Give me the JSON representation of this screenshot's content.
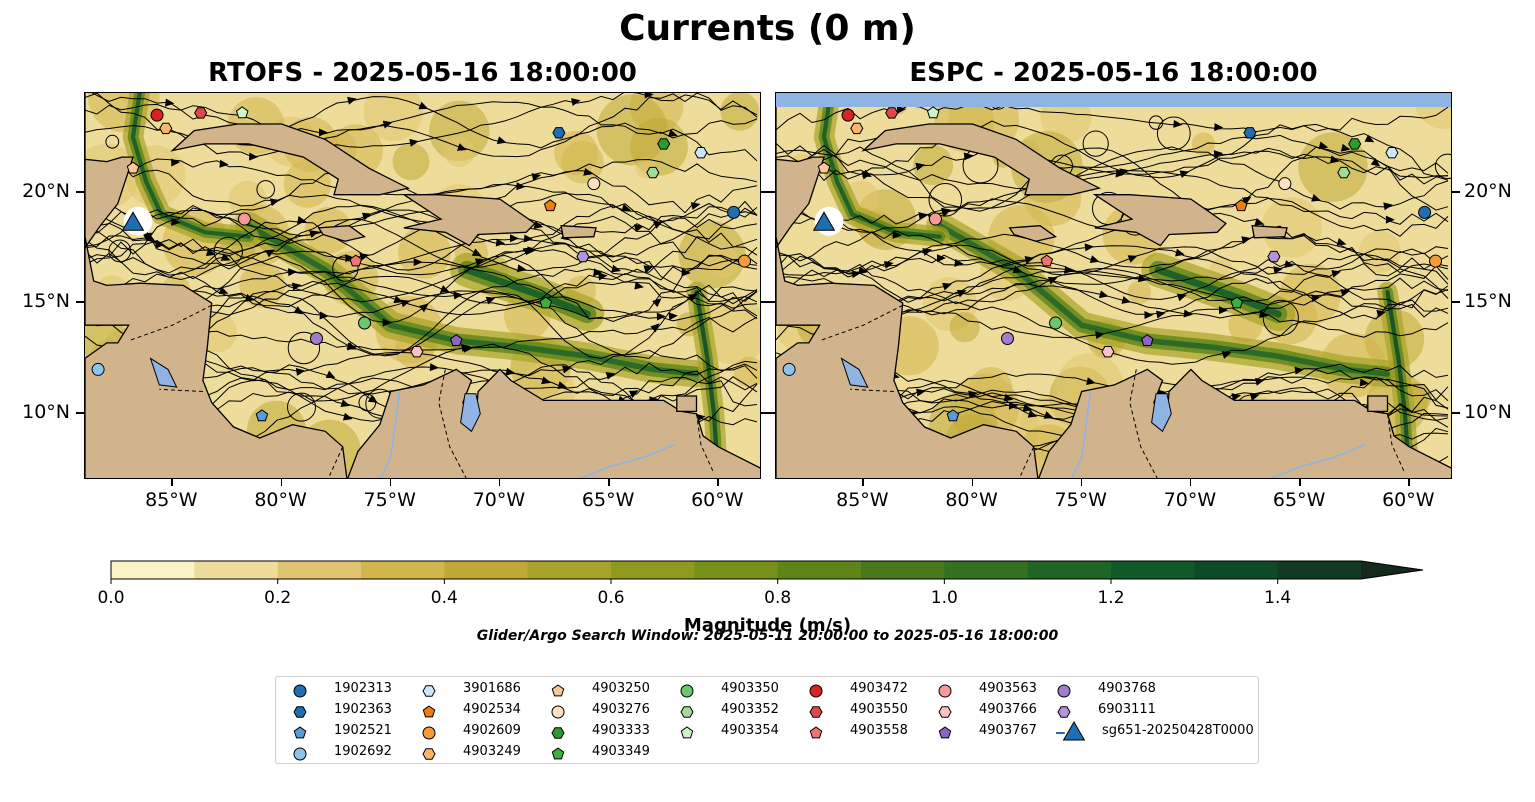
{
  "figure": {
    "title": "Currents (0 m)"
  },
  "panels": [
    {
      "name": "rtofs",
      "title": "RTOFS - 2025-05-16 18:00:00"
    },
    {
      "name": "espc",
      "title": "ESPC - 2025-05-16 18:00:00"
    }
  ],
  "axes": {
    "lon_ticks": [
      "85°W",
      "80°W",
      "75°W",
      "70°W",
      "65°W",
      "60°W"
    ],
    "lat_ticks": [
      "20°N",
      "15°N",
      "10°N"
    ]
  },
  "colorbar": {
    "label": "Magnitude (m/s)",
    "ticks": [
      "0.0",
      "0.2",
      "0.4",
      "0.6",
      "0.8",
      "1.0",
      "1.2",
      "1.4"
    ],
    "range": [
      0,
      1.5
    ],
    "extend": "max",
    "colors": [
      "#fbf3c4",
      "#eedd9a",
      "#e0c46f",
      "#d2b54d",
      "#bfaa38",
      "#a8a228",
      "#8f9a1e",
      "#76901a",
      "#5e8518",
      "#487a1c",
      "#33701f",
      "#1f6526",
      "#115a28",
      "#0d4a25",
      "#103a22",
      "#14291c"
    ]
  },
  "search_window": "Glider/Argo Search Window: 2025-05-11 20:00:00 to 2025-05-16 18:00:00",
  "colors": {
    "land": "#d2b48c",
    "lake": "#8fb4e3"
  },
  "legend": {
    "items": [
      {
        "label": "1902313",
        "marker": "circle",
        "color": "#1f6eb4"
      },
      {
        "label": "1902363",
        "marker": "hexagon",
        "color": "#1f6eb4"
      },
      {
        "label": "1902521",
        "marker": "pentagon",
        "color": "#5a9bd5"
      },
      {
        "label": "1902692",
        "marker": "circle",
        "color": "#8cc4ec"
      },
      {
        "label": "3901686",
        "marker": "hexagon",
        "color": "#cfe7fb"
      },
      {
        "label": "4902534",
        "marker": "pentagon",
        "color": "#f07c0e"
      },
      {
        "label": "4902609",
        "marker": "circle",
        "color": "#f79a3a"
      },
      {
        "label": "4903249",
        "marker": "hexagon",
        "color": "#fbb46a"
      },
      {
        "label": "4903250",
        "marker": "pentagon",
        "color": "#fcc89a"
      },
      {
        "label": "4903276",
        "marker": "circle",
        "color": "#fde0c2"
      },
      {
        "label": "4903333",
        "marker": "hexagon",
        "color": "#2c9a2c"
      },
      {
        "label": "4903349",
        "marker": "pentagon",
        "color": "#3eae3e"
      },
      {
        "label": "4903350",
        "marker": "circle",
        "color": "#6cc66c"
      },
      {
        "label": "4903352",
        "marker": "hexagon",
        "color": "#a2dc96"
      },
      {
        "label": "4903354",
        "marker": "pentagon",
        "color": "#d0f2c8"
      },
      {
        "label": "4903472",
        "marker": "circle",
        "color": "#d62424"
      },
      {
        "label": "4903550",
        "marker": "hexagon",
        "color": "#de4a48"
      },
      {
        "label": "4903558",
        "marker": "pentagon",
        "color": "#f07474"
      },
      {
        "label": "4903563",
        "marker": "circle",
        "color": "#f59a9a"
      },
      {
        "label": "4903766",
        "marker": "hexagon",
        "color": "#fbc2c2"
      },
      {
        "label": "4903767",
        "marker": "pentagon",
        "color": "#8e64c4"
      },
      {
        "label": "4903768",
        "marker": "circle",
        "color": "#a27cd0"
      },
      {
        "label": "6903111",
        "marker": "hexagon",
        "color": "#b294dc"
      },
      {
        "label": "sg651-20250428T0000",
        "marker": "triangle",
        "color": "#1f6eb4"
      }
    ]
  },
  "map_view": {
    "lon_range": [
      -89.0,
      -58.0
    ],
    "lat_range": [
      7.0,
      24.5
    ],
    "lon_tick_values": [
      -85,
      -80,
      -75,
      -70,
      -65,
      -60
    ],
    "lat_tick_values": [
      20,
      15,
      10
    ]
  },
  "markers": [
    {
      "label": "1902313",
      "lon": -59.3,
      "lat": 19.1
    },
    {
      "label": "1902363",
      "lon": -67.3,
      "lat": 22.7
    },
    {
      "label": "1902521",
      "lon": -80.9,
      "lat": 9.9
    },
    {
      "label": "1902692",
      "lon": -88.4,
      "lat": 12.0
    },
    {
      "label": "3901686",
      "lon": -60.8,
      "lat": 21.8
    },
    {
      "label": "4902534",
      "lon": -67.7,
      "lat": 19.4
    },
    {
      "label": "4902609",
      "lon": -58.8,
      "lat": 16.9
    },
    {
      "label": "4903249",
      "lon": -85.3,
      "lat": 22.9
    },
    {
      "label": "4903250",
      "lon": -86.8,
      "lat": 21.1
    },
    {
      "label": "4903276",
      "lon": -65.7,
      "lat": 20.4
    },
    {
      "label": "4903333",
      "lon": -62.5,
      "lat": 22.2
    },
    {
      "label": "4903349",
      "lon": -67.9,
      "lat": 15.0
    },
    {
      "label": "4903350",
      "lon": -76.2,
      "lat": 14.1
    },
    {
      "label": "4903352",
      "lon": -63.0,
      "lat": 20.9
    },
    {
      "label": "4903354",
      "lon": -81.8,
      "lat": 23.6
    },
    {
      "label": "4903472",
      "lon": -85.7,
      "lat": 23.5
    },
    {
      "label": "4903550",
      "lon": -83.7,
      "lat": 23.6
    },
    {
      "label": "4903558",
      "lon": -76.6,
      "lat": 16.9
    },
    {
      "label": "4903563",
      "lon": -81.7,
      "lat": 18.8
    },
    {
      "label": "4903766",
      "lon": -73.8,
      "lat": 12.8
    },
    {
      "label": "4903767",
      "lon": -72.0,
      "lat": 13.3
    },
    {
      "label": "4903768",
      "lon": -78.4,
      "lat": 13.4
    },
    {
      "label": "6903111",
      "lon": -66.2,
      "lat": 17.1
    },
    {
      "label": "sg651-20250428T0000",
      "lon": -86.8,
      "lat": 18.7
    }
  ]
}
